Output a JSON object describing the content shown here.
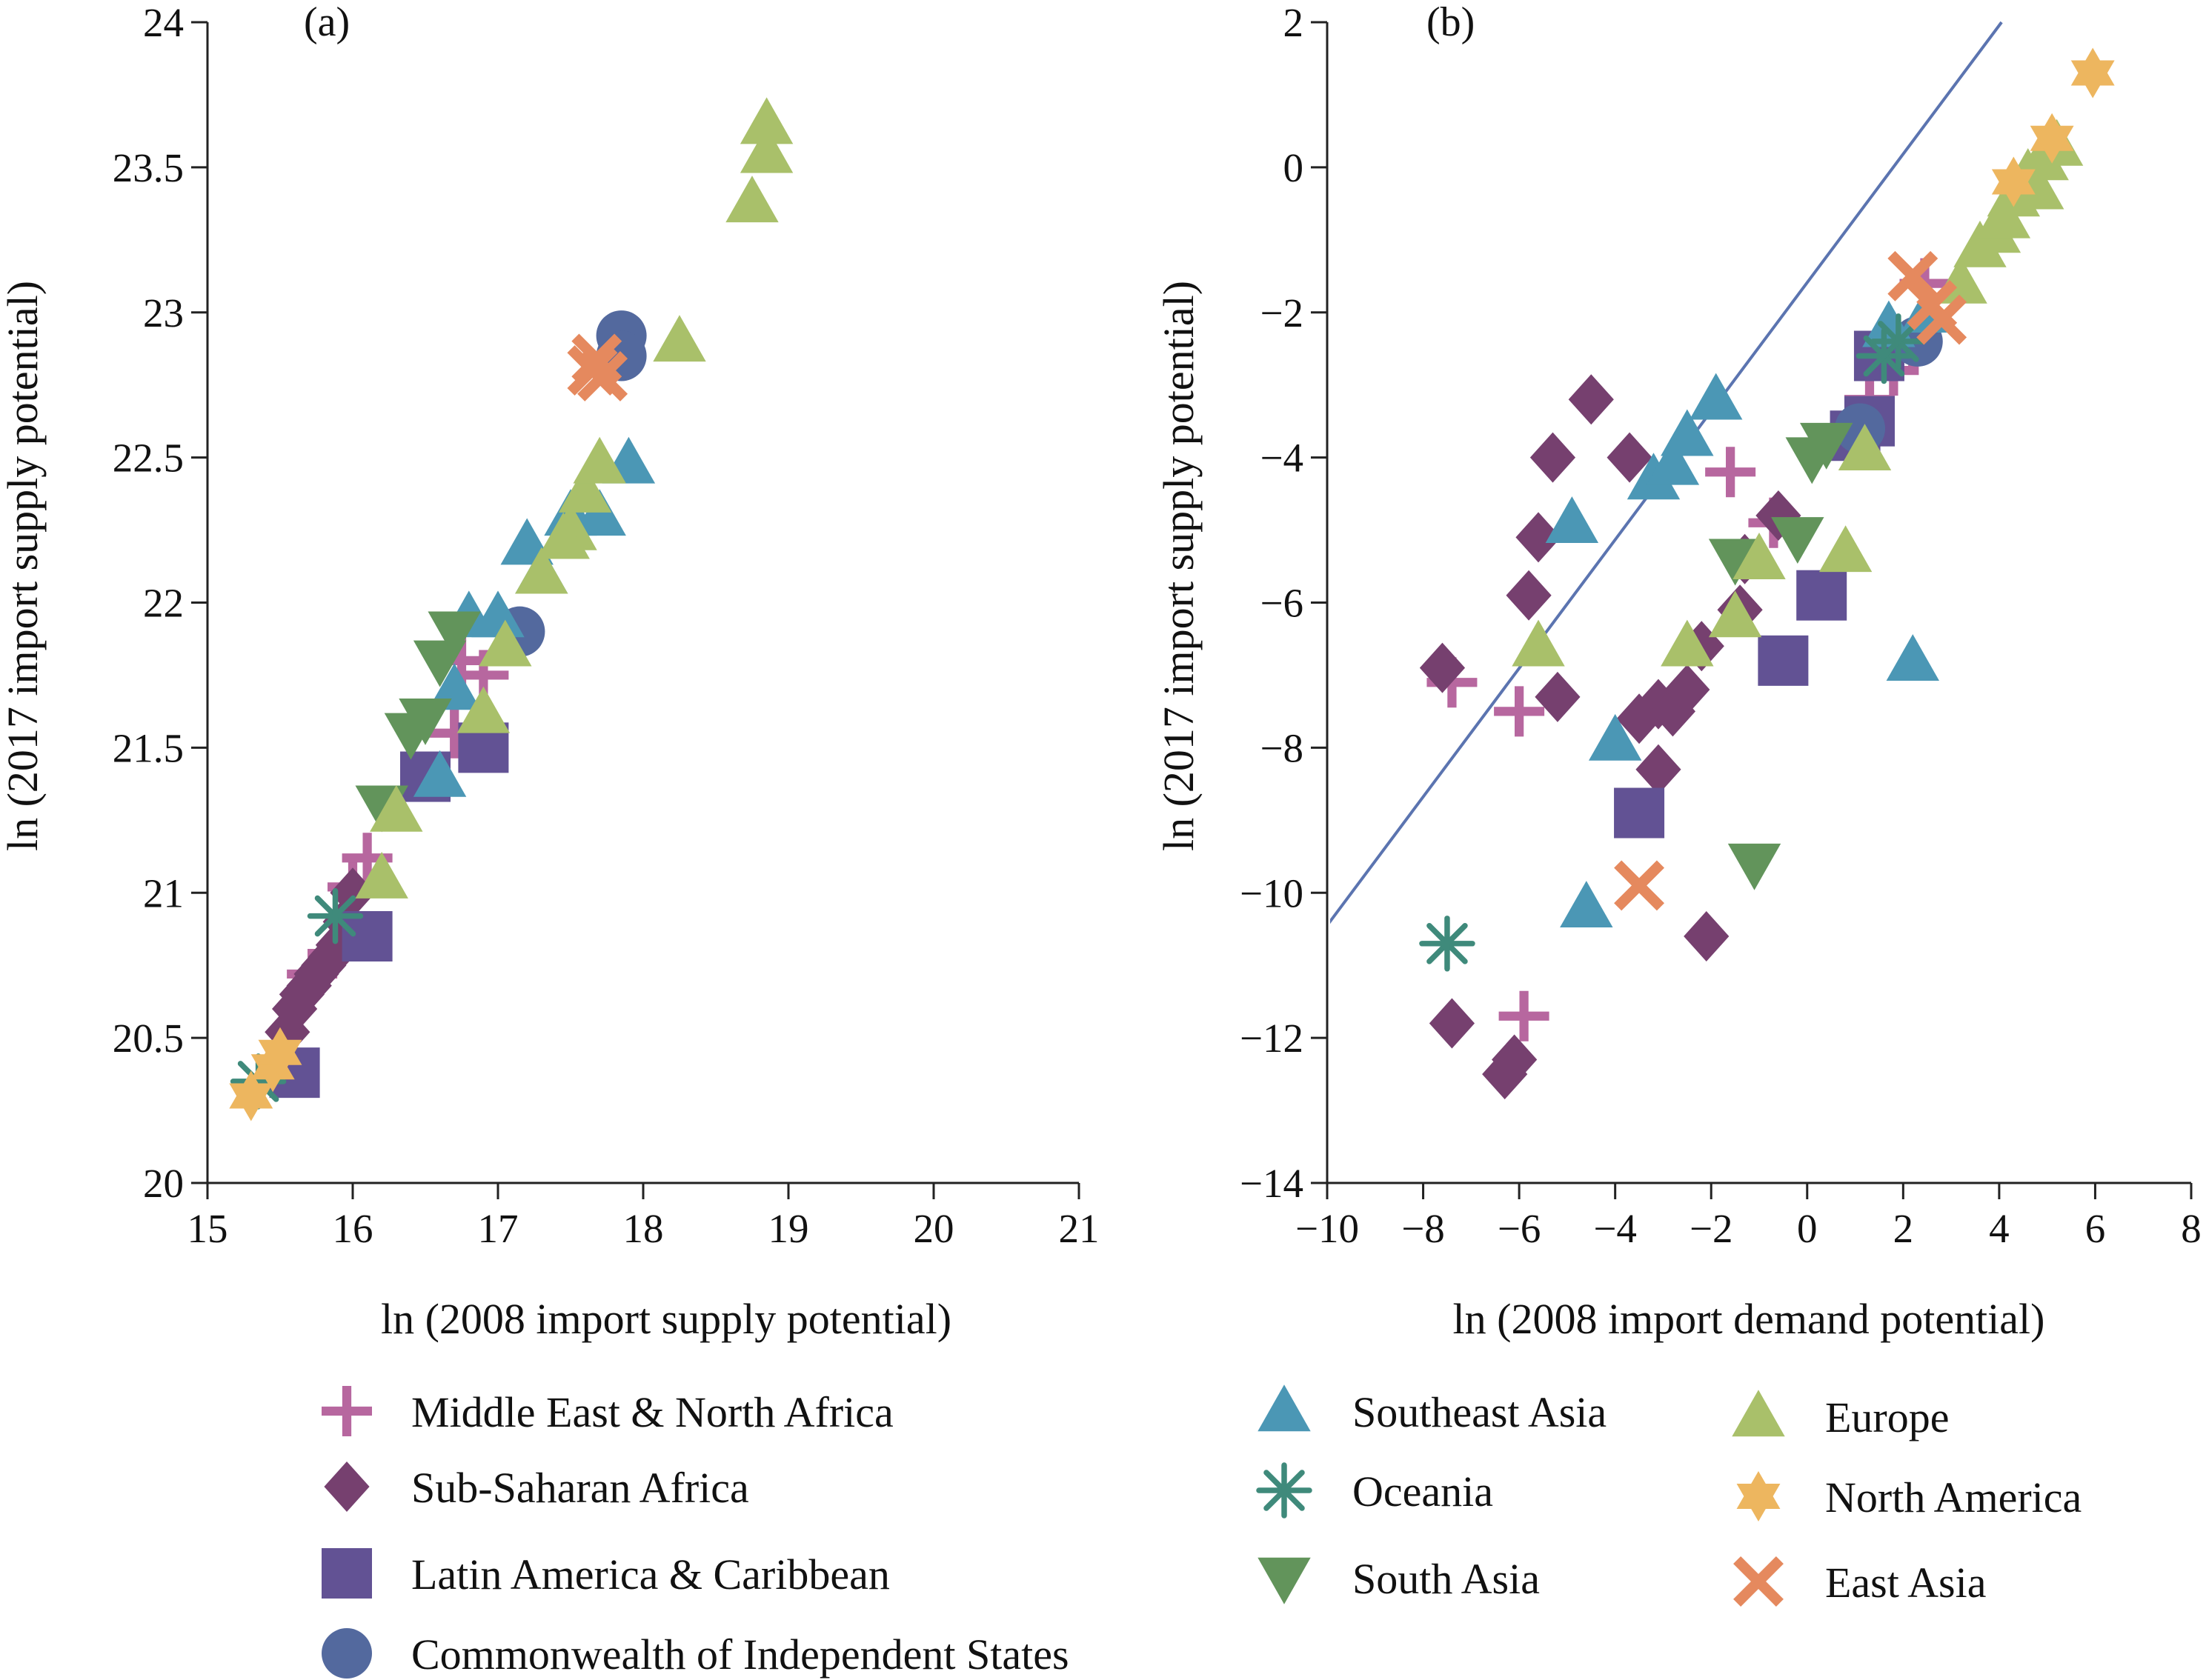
{
  "colors": {
    "mena": "#B7679F",
    "ssa": "#76406F",
    "lac": "#625294",
    "cis": "#53699E",
    "sea": "#4B97B5",
    "oceania": "#3F8A7B",
    "south_asia": "#62945B",
    "europe": "#A9C06A",
    "north_america": "#EDB65F",
    "east_asia": "#E5895E",
    "line": "#5B74B0"
  },
  "legend": [
    {
      "key": "mena",
      "label": "Middle East & North Africa",
      "marker": "plus-marker"
    },
    {
      "key": "ssa",
      "label": "Sub-Saharan Africa",
      "marker": "diamond-marker"
    },
    {
      "key": "lac",
      "label": "Latin America & Caribbean",
      "marker": "square-marker"
    },
    {
      "key": "cis",
      "label": "Commonwealth of Independent States",
      "marker": "circle-marker"
    },
    {
      "key": "sea",
      "label": "Southeast Asia",
      "marker": "triangle-up-marker"
    },
    {
      "key": "oceania",
      "label": "Oceania",
      "marker": "asterisk-marker"
    },
    {
      "key": "south_asia",
      "label": "South Asia",
      "marker": "triangle-down-marker"
    },
    {
      "key": "europe",
      "label": "Europe",
      "marker": "triangle-up-marker"
    },
    {
      "key": "north_america",
      "label": "North America",
      "marker": "hexagram-marker"
    },
    {
      "key": "east_asia",
      "label": "East Asia",
      "marker": "x-marker"
    }
  ],
  "chart_data": [
    {
      "type": "scatter",
      "panel_label": "(a)",
      "title": "",
      "xlabel": "ln (2008 import supply potential)",
      "ylabel": "ln (2017 import supply potential)",
      "xlim": [
        15,
        21
      ],
      "ylim": [
        20,
        24
      ],
      "xticks": [
        15,
        16,
        17,
        18,
        19,
        20,
        21
      ],
      "yticks": [
        20,
        20.5,
        21,
        21.5,
        22,
        22.5,
        23,
        23.5,
        24
      ],
      "grid": false,
      "series": [
        {
          "key": "mena",
          "name": "Middle East & North Africa",
          "points": [
            [
              15.72,
              20.72
            ],
            [
              16.0,
              21.02
            ],
            [
              16.1,
              21.12
            ],
            [
              16.7,
              21.55
            ],
            [
              16.75,
              21.8
            ],
            [
              16.9,
              21.75
            ]
          ]
        },
        {
          "key": "ssa",
          "name": "Sub-Saharan Africa",
          "points": [
            [
              15.55,
              20.52
            ],
            [
              15.6,
              20.6
            ],
            [
              15.65,
              20.65
            ],
            [
              15.7,
              20.68
            ],
            [
              15.75,
              20.72
            ],
            [
              15.8,
              20.75
            ],
            [
              15.85,
              20.78
            ],
            [
              15.9,
              20.82
            ],
            [
              15.95,
              20.9
            ],
            [
              16.0,
              21.0
            ]
          ]
        },
        {
          "key": "lac",
          "name": "Latin America & Caribbean",
          "points": [
            [
              15.6,
              20.38
            ],
            [
              16.1,
              20.85
            ],
            [
              16.5,
              21.4
            ],
            [
              16.9,
              21.5
            ]
          ]
        },
        {
          "key": "cis",
          "name": "Commonwealth of Independent States",
          "points": [
            [
              17.15,
              21.9
            ],
            [
              17.85,
              22.92
            ],
            [
              17.85,
              22.85
            ]
          ]
        },
        {
          "key": "sea",
          "name": "Southeast Asia",
          "points": [
            [
              16.6,
              21.4
            ],
            [
              16.7,
              21.7
            ],
            [
              16.8,
              21.95
            ],
            [
              17.0,
              21.95
            ],
            [
              17.2,
              22.2
            ],
            [
              17.3,
              22.1
            ],
            [
              17.5,
              22.3
            ],
            [
              17.7,
              22.3
            ],
            [
              17.9,
              22.48
            ]
          ]
        },
        {
          "key": "oceania",
          "name": "Oceania",
          "points": [
            [
              15.35,
              20.35
            ],
            [
              15.88,
              20.92
            ]
          ]
        },
        {
          "key": "south_asia",
          "name": "South Asia",
          "points": [
            [
              16.2,
              21.3
            ],
            [
              16.4,
              21.55
            ],
            [
              16.5,
              21.6
            ],
            [
              16.6,
              21.8
            ],
            [
              16.7,
              21.9
            ]
          ]
        },
        {
          "key": "europe",
          "name": "Europe",
          "points": [
            [
              16.2,
              21.05
            ],
            [
              16.3,
              21.28
            ],
            [
              16.9,
              21.62
            ],
            [
              17.05,
              21.85
            ],
            [
              17.3,
              22.1
            ],
            [
              17.5,
              22.25
            ],
            [
              17.6,
              22.38
            ],
            [
              17.7,
              22.48
            ],
            [
              17.45,
              22.22
            ],
            [
              18.25,
              22.9
            ],
            [
              18.75,
              23.38
            ],
            [
              18.85,
              23.55
            ],
            [
              18.85,
              23.65
            ]
          ]
        },
        {
          "key": "north_america",
          "name": "North America",
          "points": [
            [
              15.3,
              20.3
            ],
            [
              15.45,
              20.4
            ],
            [
              15.5,
              20.45
            ]
          ]
        },
        {
          "key": "east_asia",
          "name": "East Asia",
          "points": [
            [
              17.65,
              22.8
            ],
            [
              17.72,
              22.78
            ],
            [
              17.68,
              22.84
            ]
          ]
        }
      ]
    },
    {
      "type": "scatter",
      "panel_label": "(b)",
      "title": "",
      "xlabel": "ln (2008 import demand potential)",
      "ylabel": "ln (2017 import supply potential)",
      "xlim": [
        -10,
        8
      ],
      "ylim": [
        -14,
        2
      ],
      "xticks": [
        -10,
        -8,
        -6,
        -4,
        -2,
        0,
        2,
        4,
        6,
        8
      ],
      "yticks": [
        -14,
        -12,
        -10,
        -8,
        -6,
        -4,
        -2,
        0,
        2
      ],
      "grid": false,
      "reference_line": {
        "points": [
          [
            -10,
            -10.45
          ],
          [
            4.05,
            2.0
          ]
        ]
      },
      "series": [
        {
          "key": "mena",
          "name": "Middle East & North Africa",
          "points": [
            [
              -7.4,
              -7.1
            ],
            [
              -6.0,
              -7.5
            ],
            [
              -5.9,
              -11.7
            ],
            [
              -1.6,
              -4.2
            ],
            [
              -0.7,
              -4.9
            ],
            [
              1.3,
              -3.2
            ],
            [
              1.8,
              -2.8
            ],
            [
              2.2,
              -2.5
            ],
            [
              2.45,
              -1.6
            ]
          ]
        },
        {
          "key": "ssa",
          "name": "Sub-Saharan Africa",
          "points": [
            [
              -7.6,
              -6.9
            ],
            [
              -7.4,
              -11.8
            ],
            [
              -6.3,
              -12.5
            ],
            [
              -6.1,
              -12.3
            ],
            [
              -5.8,
              -5.9
            ],
            [
              -5.6,
              -5.1
            ],
            [
              -5.3,
              -4.0
            ],
            [
              -5.2,
              -7.3
            ],
            [
              -4.5,
              -3.2
            ],
            [
              -3.7,
              -4.0
            ],
            [
              -3.5,
              -7.6
            ],
            [
              -3.1,
              -7.4
            ],
            [
              -2.8,
              -7.5
            ],
            [
              -2.5,
              -7.2
            ],
            [
              -3.1,
              -8.3
            ],
            [
              -2.2,
              -6.6
            ],
            [
              -2.1,
              -10.6
            ],
            [
              -1.4,
              -6.1
            ],
            [
              -1.3,
              -5.4
            ],
            [
              -0.6,
              -4.8
            ]
          ]
        },
        {
          "key": "lac",
          "name": "Latin America & Caribbean",
          "points": [
            [
              -3.5,
              -8.9
            ],
            [
              -0.5,
              -6.8
            ],
            [
              0.3,
              -5.9
            ],
            [
              1.0,
              -3.7
            ],
            [
              1.3,
              -3.5
            ],
            [
              1.5,
              -2.6
            ]
          ]
        },
        {
          "key": "cis",
          "name": "Commonwealth of Independent States",
          "points": [
            [
              1.1,
              -3.6
            ],
            [
              2.3,
              -2.4
            ]
          ]
        },
        {
          "key": "sea",
          "name": "Southeast Asia",
          "points": [
            [
              -4.6,
              -10.2
            ],
            [
              -4.0,
              -7.9
            ],
            [
              -4.9,
              -4.9
            ],
            [
              -3.2,
              -4.3
            ],
            [
              -2.8,
              -4.1
            ],
            [
              -2.5,
              -3.7
            ],
            [
              -1.9,
              -3.2
            ],
            [
              1.7,
              -2.2
            ],
            [
              2.5,
              -2.0
            ],
            [
              2.2,
              -6.8
            ]
          ]
        },
        {
          "key": "oceania",
          "name": "Oceania",
          "points": [
            [
              -7.5,
              -10.7
            ],
            [
              1.6,
              -2.6
            ],
            [
              1.9,
              -2.4
            ]
          ]
        },
        {
          "key": "south_asia",
          "name": "South Asia",
          "points": [
            [
              -1.5,
              -5.4
            ],
            [
              -1.1,
              -9.6
            ],
            [
              -0.2,
              -5.1
            ],
            [
              0.1,
              -4.0
            ],
            [
              0.4,
              -3.8
            ]
          ]
        },
        {
          "key": "europe",
          "name": "Europe",
          "points": [
            [
              -5.6,
              -6.6
            ],
            [
              -2.5,
              -6.6
            ],
            [
              -1.5,
              -6.2
            ],
            [
              -1.0,
              -5.4
            ],
            [
              0.8,
              -5.3
            ],
            [
              1.2,
              -3.9
            ],
            [
              3.2,
              -1.6
            ],
            [
              3.6,
              -1.1
            ],
            [
              3.9,
              -0.9
            ],
            [
              4.1,
              -0.7
            ],
            [
              4.3,
              -0.4
            ],
            [
              4.6,
              -0.1
            ],
            [
              4.9,
              0.1
            ],
            [
              5.2,
              0.3
            ],
            [
              4.8,
              -0.3
            ]
          ]
        },
        {
          "key": "north_america",
          "name": "North America",
          "points": [
            [
              4.3,
              -0.2
            ],
            [
              5.1,
              0.4
            ],
            [
              5.95,
              1.3
            ]
          ]
        },
        {
          "key": "east_asia",
          "name": "East Asia",
          "points": [
            [
              -3.5,
              -9.9
            ],
            [
              2.2,
              -1.5
            ],
            [
              2.6,
              -1.9
            ],
            [
              2.8,
              -2.1
            ]
          ]
        }
      ]
    }
  ]
}
